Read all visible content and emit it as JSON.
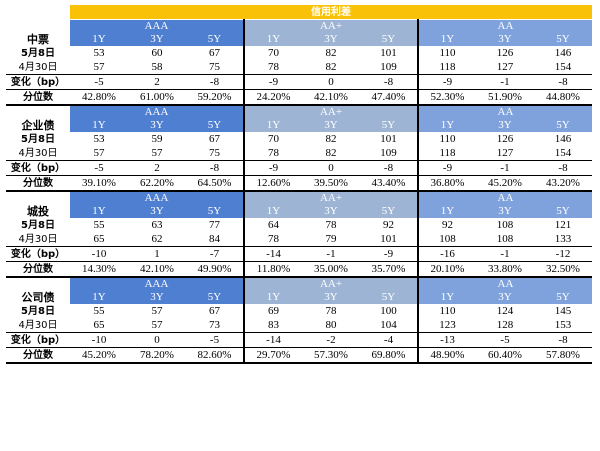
{
  "title": "信用利差",
  "row_labels": {
    "date1": "5月8日",
    "date2": "4月30日",
    "change": "变化（bp）",
    "percentile": "分位数"
  },
  "sections": [
    {
      "name": "中票",
      "groups": [
        {
          "rating": "AAA",
          "tenors": [
            "1Y",
            "3Y",
            "5Y"
          ],
          "d1": [
            "53",
            "60",
            "67"
          ],
          "d2": [
            "57",
            "58",
            "75"
          ],
          "chg": [
            "-5",
            "2",
            "-8"
          ],
          "pct": [
            "42.80%",
            "61.00%",
            "59.20%"
          ]
        },
        {
          "rating": "AA+",
          "tenors": [
            "1Y",
            "3Y",
            "5Y"
          ],
          "d1": [
            "70",
            "82",
            "101"
          ],
          "d2": [
            "78",
            "82",
            "109"
          ],
          "chg": [
            "-9",
            "0",
            "-8"
          ],
          "pct": [
            "24.20%",
            "42.10%",
            "47.40%"
          ]
        },
        {
          "rating": "AA",
          "tenors": [
            "1Y",
            "3Y",
            "5Y"
          ],
          "d1": [
            "110",
            "126",
            "146"
          ],
          "d2": [
            "118",
            "127",
            "154"
          ],
          "chg": [
            "-9",
            "-1",
            "-8"
          ],
          "pct": [
            "52.30%",
            "51.90%",
            "44.80%"
          ]
        }
      ]
    },
    {
      "name": "企业债",
      "groups": [
        {
          "rating": "AAA",
          "tenors": [
            "1Y",
            "3Y",
            "5Y"
          ],
          "d1": [
            "53",
            "59",
            "67"
          ],
          "d2": [
            "57",
            "57",
            "75"
          ],
          "chg": [
            "-5",
            "2",
            "-8"
          ],
          "pct": [
            "39.10%",
            "62.20%",
            "64.50%"
          ]
        },
        {
          "rating": "AA+",
          "tenors": [
            "1Y",
            "3Y",
            "5Y"
          ],
          "d1": [
            "70",
            "82",
            "101"
          ],
          "d2": [
            "78",
            "82",
            "109"
          ],
          "chg": [
            "-9",
            "0",
            "-8"
          ],
          "pct": [
            "12.60%",
            "39.50%",
            "43.40%"
          ]
        },
        {
          "rating": "AA",
          "tenors": [
            "1Y",
            "3Y",
            "5Y"
          ],
          "d1": [
            "110",
            "126",
            "146"
          ],
          "d2": [
            "118",
            "127",
            "154"
          ],
          "chg": [
            "-9",
            "-1",
            "-8"
          ],
          "pct": [
            "36.80%",
            "45.20%",
            "43.20%"
          ]
        }
      ]
    },
    {
      "name": "城投",
      "groups": [
        {
          "rating": "AAA",
          "tenors": [
            "1Y",
            "3Y",
            "5Y"
          ],
          "d1": [
            "55",
            "63",
            "77"
          ],
          "d2": [
            "65",
            "62",
            "84"
          ],
          "chg": [
            "-10",
            "1",
            "-7"
          ],
          "pct": [
            "14.30%",
            "42.10%",
            "49.90%"
          ]
        },
        {
          "rating": "AA+",
          "tenors": [
            "1Y",
            "3Y",
            "5Y"
          ],
          "d1": [
            "64",
            "78",
            "92"
          ],
          "d2": [
            "78",
            "79",
            "101"
          ],
          "chg": [
            "-14",
            "-1",
            "-9"
          ],
          "pct": [
            "11.80%",
            "35.00%",
            "35.70%"
          ]
        },
        {
          "rating": "AA",
          "tenors": [
            "1Y",
            "3Y",
            "5Y"
          ],
          "d1": [
            "92",
            "108",
            "121"
          ],
          "d2": [
            "108",
            "108",
            "133"
          ],
          "chg": [
            "-16",
            "-1",
            "-12"
          ],
          "pct": [
            "20.10%",
            "33.80%",
            "32.50%"
          ]
        }
      ]
    },
    {
      "name": "公司债",
      "groups": [
        {
          "rating": "AAA",
          "tenors": [
            "1Y",
            "3Y",
            "5Y"
          ],
          "d1": [
            "55",
            "57",
            "67"
          ],
          "d2": [
            "65",
            "57",
            "73"
          ],
          "chg": [
            "-10",
            "0",
            "-5"
          ],
          "pct": [
            "45.20%",
            "78.20%",
            "82.60%"
          ]
        },
        {
          "rating": "AA+",
          "tenors": [
            "1Y",
            "3Y",
            "5Y"
          ],
          "d1": [
            "69",
            "78",
            "100"
          ],
          "d2": [
            "83",
            "80",
            "104"
          ],
          "chg": [
            "-14",
            "-2",
            "-4"
          ],
          "pct": [
            "29.70%",
            "57.30%",
            "69.80%"
          ]
        },
        {
          "rating": "AA",
          "tenors": [
            "1Y",
            "3Y",
            "5Y"
          ],
          "d1": [
            "110",
            "124",
            "145"
          ],
          "d2": [
            "123",
            "128",
            "153"
          ],
          "chg": [
            "-13",
            "-5",
            "-8"
          ],
          "pct": [
            "48.90%",
            "60.40%",
            "57.80%"
          ]
        }
      ]
    }
  ],
  "colors": {
    "title_bg": "#f9c108",
    "aaa_header": "#4f7fd1",
    "aa_plus_header": "#9db4d4",
    "aa_header": "#7fa2dc"
  }
}
